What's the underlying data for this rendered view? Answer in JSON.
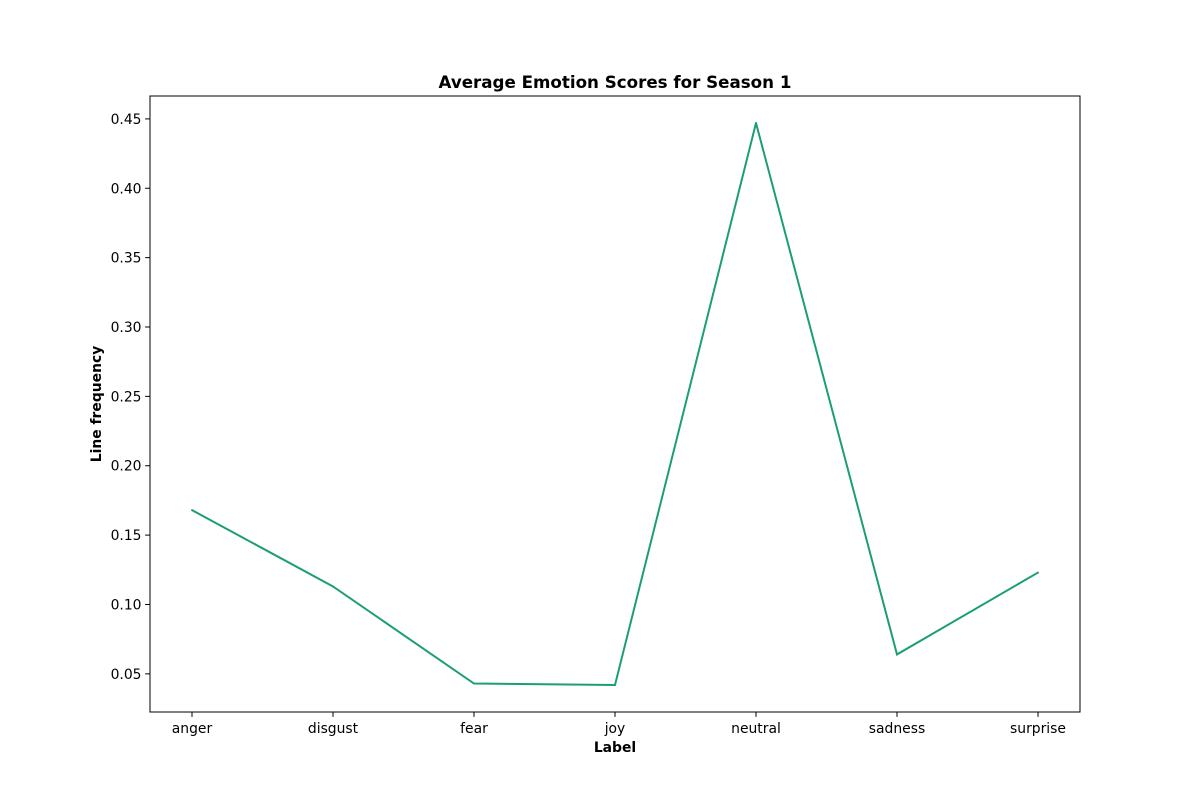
{
  "chart_data": {
    "type": "line",
    "title": "Average Emotion Scores for Season 1",
    "xlabel": "Label",
    "ylabel": "Line frequency",
    "categories": [
      "anger",
      "disgust",
      "fear",
      "joy",
      "neutral",
      "sadness",
      "surprise"
    ],
    "series": [
      {
        "values": [
          0.168,
          0.113,
          0.043,
          0.042,
          0.447,
          0.064,
          0.123
        ],
        "color": "#1b9e77"
      }
    ],
    "ylim": [
      0.0225,
      0.4665
    ],
    "yticks": [
      0.05,
      0.1,
      0.15,
      0.2,
      0.25,
      0.3,
      0.35,
      0.4,
      0.45
    ],
    "ytick_labels": [
      "0.05",
      "0.10",
      "0.15",
      "0.20",
      "0.25",
      "0.30",
      "0.35",
      "0.40",
      "0.45"
    ],
    "grid": false,
    "legend": "none"
  }
}
